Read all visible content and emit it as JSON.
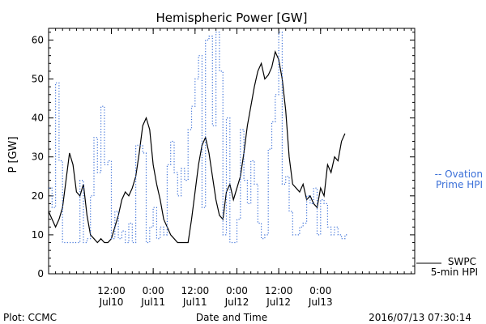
{
  "chart_data": {
    "type": "line",
    "title": "Hemispheric Power [GW]",
    "ylabel": "P [GW]",
    "xlabel": "Date and Time",
    "ylim": [
      0,
      63
    ],
    "yticks": [
      0,
      10,
      20,
      30,
      40,
      50,
      60
    ],
    "xlim": [
      "2016-07-09T18:00",
      "2016-07-14T03:00"
    ],
    "xticks": [
      {
        "t": "2016-07-10T12:00",
        "time": "12:00",
        "date": "Jul10"
      },
      {
        "t": "2016-07-11T00:00",
        "time": "0:00",
        "date": "Jul11"
      },
      {
        "t": "2016-07-11T12:00",
        "time": "12:00",
        "date": "Jul11"
      },
      {
        "t": "2016-07-12T00:00",
        "time": "0:00",
        "date": "Jul12"
      },
      {
        "t": "2016-07-12T12:00",
        "time": "12:00",
        "date": "Jul12"
      },
      {
        "t": "2016-07-13T00:00",
        "time": "0:00",
        "date": "Jul13"
      }
    ],
    "grid": false,
    "series": [
      {
        "name": "SWPC 5-min HPI",
        "style": "solid",
        "color": "#000000",
        "x": [
          "2016-07-09T18:00",
          "2016-07-09T19:00",
          "2016-07-09T20:00",
          "2016-07-09T21:00",
          "2016-07-09T22:00",
          "2016-07-09T23:00",
          "2016-07-10T00:00",
          "2016-07-10T01:00",
          "2016-07-10T02:00",
          "2016-07-10T03:00",
          "2016-07-10T04:00",
          "2016-07-10T05:00",
          "2016-07-10T06:00",
          "2016-07-10T07:00",
          "2016-07-10T08:00",
          "2016-07-10T09:00",
          "2016-07-10T10:00",
          "2016-07-10T11:00",
          "2016-07-10T12:00",
          "2016-07-10T13:00",
          "2016-07-10T14:00",
          "2016-07-10T15:00",
          "2016-07-10T16:00",
          "2016-07-10T17:00",
          "2016-07-10T18:00",
          "2016-07-10T19:00",
          "2016-07-10T20:00",
          "2016-07-10T21:00",
          "2016-07-10T22:00",
          "2016-07-10T23:00",
          "2016-07-11T00:00",
          "2016-07-11T01:00",
          "2016-07-11T02:00",
          "2016-07-11T03:00",
          "2016-07-11T04:00",
          "2016-07-11T05:00",
          "2016-07-11T06:00",
          "2016-07-11T07:00",
          "2016-07-11T08:00",
          "2016-07-11T09:00",
          "2016-07-11T10:00",
          "2016-07-11T11:00",
          "2016-07-11T12:00",
          "2016-07-11T13:00",
          "2016-07-11T14:00",
          "2016-07-11T15:00",
          "2016-07-11T16:00",
          "2016-07-11T17:00",
          "2016-07-11T18:00",
          "2016-07-11T19:00",
          "2016-07-11T20:00",
          "2016-07-11T21:00",
          "2016-07-11T22:00",
          "2016-07-11T23:00",
          "2016-07-12T00:00",
          "2016-07-12T01:00",
          "2016-07-12T02:00",
          "2016-07-12T03:00",
          "2016-07-12T04:00",
          "2016-07-12T05:00",
          "2016-07-12T06:00",
          "2016-07-12T07:00",
          "2016-07-12T08:00",
          "2016-07-12T09:00",
          "2016-07-12T10:00",
          "2016-07-12T11:00",
          "2016-07-12T12:00",
          "2016-07-12T13:00",
          "2016-07-12T14:00",
          "2016-07-12T15:00",
          "2016-07-12T16:00",
          "2016-07-12T17:00",
          "2016-07-12T18:00",
          "2016-07-12T19:00",
          "2016-07-12T20:00",
          "2016-07-12T21:00",
          "2016-07-12T22:00",
          "2016-07-12T23:00",
          "2016-07-13T00:00",
          "2016-07-13T01:00",
          "2016-07-13T02:00",
          "2016-07-13T03:00",
          "2016-07-13T04:00",
          "2016-07-13T05:00",
          "2016-07-13T06:00",
          "2016-07-13T07:00"
        ],
        "y": [
          16,
          14,
          12,
          14,
          17,
          24,
          31,
          28,
          21,
          20,
          23,
          15,
          10,
          9,
          8,
          9,
          8,
          8,
          9,
          12,
          15,
          19,
          21,
          20,
          22,
          25,
          31,
          38,
          40,
          37,
          28,
          23,
          19,
          14,
          12,
          10,
          9,
          8,
          8,
          8,
          8,
          14,
          21,
          28,
          33,
          35,
          31,
          25,
          19,
          15,
          14,
          21,
          23,
          19,
          22,
          25,
          31,
          38,
          43,
          48,
          52,
          54,
          50,
          51,
          53,
          57,
          55,
          50,
          42,
          30,
          23,
          22,
          21,
          23,
          19,
          20,
          18,
          17,
          22,
          20,
          28,
          26,
          30,
          29,
          34,
          36
        ]
      },
      {
        "name": "Ovation Prime HPI",
        "style": "dotted",
        "color": "#3a6fd8",
        "x": [
          "2016-07-09T18:00",
          "2016-07-09T19:00",
          "2016-07-09T20:00",
          "2016-07-09T21:00",
          "2016-07-09T22:00",
          "2016-07-09T23:00",
          "2016-07-10T00:00",
          "2016-07-10T01:00",
          "2016-07-10T02:00",
          "2016-07-10T03:00",
          "2016-07-10T04:00",
          "2016-07-10T05:00",
          "2016-07-10T06:00",
          "2016-07-10T07:00",
          "2016-07-10T08:00",
          "2016-07-10T09:00",
          "2016-07-10T10:00",
          "2016-07-10T11:00",
          "2016-07-10T12:00",
          "2016-07-10T13:00",
          "2016-07-10T14:00",
          "2016-07-10T15:00",
          "2016-07-10T16:00",
          "2016-07-10T17:00",
          "2016-07-10T18:00",
          "2016-07-10T19:00",
          "2016-07-10T20:00",
          "2016-07-10T21:00",
          "2016-07-10T22:00",
          "2016-07-10T23:00",
          "2016-07-11T00:00",
          "2016-07-11T01:00",
          "2016-07-11T02:00",
          "2016-07-11T03:00",
          "2016-07-11T04:00",
          "2016-07-11T05:00",
          "2016-07-11T06:00",
          "2016-07-11T07:00",
          "2016-07-11T08:00",
          "2016-07-11T09:00",
          "2016-07-11T10:00",
          "2016-07-11T11:00",
          "2016-07-11T12:00",
          "2016-07-11T13:00",
          "2016-07-11T14:00",
          "2016-07-11T15:00",
          "2016-07-11T16:00",
          "2016-07-11T17:00",
          "2016-07-11T18:00",
          "2016-07-11T19:00",
          "2016-07-11T20:00",
          "2016-07-11T21:00",
          "2016-07-11T22:00",
          "2016-07-11T23:00",
          "2016-07-12T00:00",
          "2016-07-12T01:00",
          "2016-07-12T02:00",
          "2016-07-12T03:00",
          "2016-07-12T04:00",
          "2016-07-12T05:00",
          "2016-07-12T06:00",
          "2016-07-12T07:00",
          "2016-07-12T08:00",
          "2016-07-12T09:00",
          "2016-07-12T10:00",
          "2016-07-12T11:00",
          "2016-07-12T12:00",
          "2016-07-12T13:00",
          "2016-07-12T14:00",
          "2016-07-12T15:00",
          "2016-07-12T16:00",
          "2016-07-12T17:00",
          "2016-07-12T18:00",
          "2016-07-12T19:00",
          "2016-07-12T20:00",
          "2016-07-12T21:00",
          "2016-07-12T22:00",
          "2016-07-12T23:00",
          "2016-07-13T00:00",
          "2016-07-13T01:00",
          "2016-07-13T02:00",
          "2016-07-13T03:00",
          "2016-07-13T04:00",
          "2016-07-13T05:00",
          "2016-07-13T06:00",
          "2016-07-13T07:00"
        ],
        "y": [
          22,
          17,
          49,
          29,
          8,
          8,
          8,
          8,
          8,
          24,
          8,
          9,
          20,
          35,
          26,
          43,
          28,
          29,
          9,
          16,
          9,
          11,
          8,
          13,
          8,
          33,
          33,
          31,
          8,
          12,
          17,
          9,
          12,
          10,
          28,
          34,
          26,
          20,
          27,
          24,
          37,
          43,
          50,
          56,
          17,
          60,
          61,
          38,
          62,
          52,
          10,
          40,
          8,
          8,
          14,
          37,
          24,
          18,
          29,
          23,
          13,
          9,
          10,
          32,
          39,
          46,
          62,
          23,
          25,
          16,
          10,
          10,
          12,
          13,
          20,
          18,
          22,
          10,
          19,
          18,
          12,
          10,
          12,
          10,
          9,
          10
        ]
      }
    ],
    "legend": [
      {
        "text_line1": "-- Ovation",
        "text_line2": "Prime HPI",
        "color": "#3a6fd8"
      },
      {
        "text_line1": "SWPC",
        "text_line2": "5-min HPI",
        "color": "#000000"
      }
    ]
  },
  "footer": {
    "left": "Plot: CCMC",
    "right": "2016/07/13 07:30:14"
  }
}
